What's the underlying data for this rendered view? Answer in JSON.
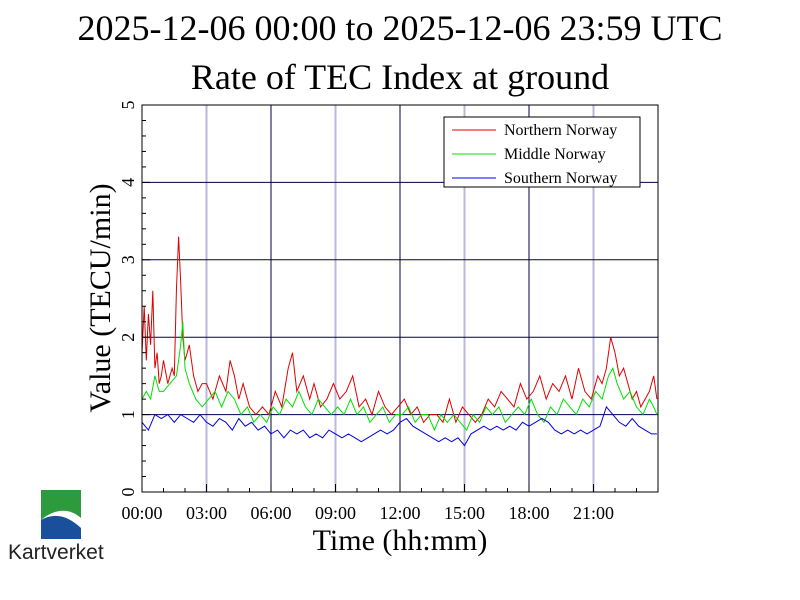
{
  "chart_data": {
    "type": "line",
    "title": "2025-12-06 00:00 to 2025-12-06 23:59 UTC",
    "subtitle": "Rate of TEC Index at ground",
    "xlabel": "Time (hh:mm)",
    "ylabel": "Value (TECU/min)",
    "xlim": [
      0,
      24
    ],
    "ylim": [
      0,
      5
    ],
    "x_ticks": [
      {
        "value": 0,
        "label": "00:00"
      },
      {
        "value": 3,
        "label": "03:00"
      },
      {
        "value": 6,
        "label": "06:00"
      },
      {
        "value": 9,
        "label": "09:00"
      },
      {
        "value": 12,
        "label": "12:00"
      },
      {
        "value": 15,
        "label": "15:00"
      },
      {
        "value": 18,
        "label": "18:00"
      },
      {
        "value": 21,
        "label": "21:00"
      }
    ],
    "y_ticks": [
      {
        "value": 0,
        "label": "0"
      },
      {
        "value": 1,
        "label": "1"
      },
      {
        "value": 2,
        "label": "2"
      },
      {
        "value": 3,
        "label": "3"
      },
      {
        "value": 4,
        "label": "4"
      },
      {
        "value": 5,
        "label": "5"
      }
    ],
    "grid": true,
    "legend_position": "top-right",
    "series": [
      {
        "name": "Northern Norway",
        "color": "#e00000",
        "x": [
          0,
          0.1,
          0.2,
          0.3,
          0.4,
          0.5,
          0.6,
          0.7,
          0.8,
          0.9,
          1.0,
          1.2,
          1.4,
          1.5,
          1.6,
          1.7,
          1.8,
          1.9,
          2.0,
          2.1,
          2.2,
          2.4,
          2.6,
          2.8,
          3.0,
          3.3,
          3.6,
          3.9,
          4.1,
          4.3,
          4.5,
          4.7,
          5.0,
          5.3,
          5.6,
          5.9,
          6.2,
          6.5,
          6.8,
          7.0,
          7.2,
          7.5,
          7.8,
          8.0,
          8.3,
          8.6,
          8.9,
          9.2,
          9.5,
          9.8,
          10.1,
          10.4,
          10.7,
          11.0,
          11.3,
          11.6,
          11.9,
          12.2,
          12.5,
          12.8,
          13.1,
          13.4,
          13.7,
          14.0,
          14.3,
          14.6,
          14.9,
          15.2,
          15.5,
          15.8,
          16.1,
          16.4,
          16.7,
          17.0,
          17.3,
          17.6,
          17.9,
          18.2,
          18.5,
          18.8,
          19.1,
          19.4,
          19.7,
          20.0,
          20.3,
          20.6,
          20.9,
          21.2,
          21.4,
          21.6,
          21.8,
          22.0,
          22.2,
          22.4,
          22.6,
          22.8,
          23.0,
          23.2,
          23.4,
          23.6,
          23.8,
          23.95
        ],
        "values": [
          1.8,
          2.4,
          1.7,
          2.3,
          1.9,
          2.6,
          1.6,
          1.8,
          1.4,
          1.5,
          1.7,
          1.4,
          1.6,
          1.5,
          2.6,
          3.3,
          2.7,
          2.0,
          1.7,
          1.8,
          1.9,
          1.5,
          1.3,
          1.4,
          1.4,
          1.2,
          1.5,
          1.3,
          1.7,
          1.5,
          1.2,
          1.4,
          1.1,
          1.0,
          1.1,
          1.0,
          1.3,
          1.1,
          1.6,
          1.8,
          1.3,
          1.5,
          1.2,
          1.4,
          1.1,
          1.2,
          1.4,
          1.2,
          1.3,
          1.5,
          1.1,
          1.2,
          1.0,
          1.3,
          1.1,
          1.0,
          1.1,
          1.2,
          1.0,
          1.1,
          0.9,
          1.0,
          1.0,
          0.9,
          1.2,
          0.9,
          1.1,
          1.0,
          0.9,
          1.0,
          1.2,
          1.1,
          1.3,
          1.2,
          1.1,
          1.4,
          1.2,
          1.3,
          1.5,
          1.2,
          1.4,
          1.3,
          1.5,
          1.2,
          1.6,
          1.3,
          1.2,
          1.5,
          1.4,
          1.6,
          2.0,
          1.8,
          1.5,
          1.6,
          1.4,
          1.2,
          1.3,
          1.1,
          1.2,
          1.3,
          1.5,
          1.2
        ]
      },
      {
        "name": "Middle Norway",
        "color": "#00e000",
        "x": [
          0,
          0.2,
          0.4,
          0.6,
          0.8,
          1.0,
          1.3,
          1.6,
          1.8,
          1.9,
          2.0,
          2.2,
          2.5,
          2.8,
          3.1,
          3.4,
          3.7,
          4.0,
          4.3,
          4.6,
          4.9,
          5.2,
          5.5,
          5.8,
          6.1,
          6.4,
          6.7,
          7.0,
          7.3,
          7.6,
          7.9,
          8.2,
          8.5,
          8.8,
          9.1,
          9.4,
          9.7,
          10.0,
          10.3,
          10.6,
          10.9,
          11.2,
          11.5,
          11.8,
          12.1,
          12.4,
          12.7,
          13.0,
          13.3,
          13.6,
          13.9,
          14.2,
          14.5,
          14.8,
          15.1,
          15.4,
          15.7,
          16.0,
          16.3,
          16.6,
          16.9,
          17.2,
          17.5,
          17.8,
          18.1,
          18.4,
          18.7,
          19.0,
          19.3,
          19.6,
          19.9,
          20.2,
          20.5,
          20.8,
          21.1,
          21.4,
          21.7,
          21.9,
          22.1,
          22.4,
          22.7,
          23.0,
          23.3,
          23.6,
          23.8,
          23.95
        ],
        "values": [
          1.2,
          1.3,
          1.2,
          1.5,
          1.3,
          1.3,
          1.4,
          1.5,
          1.9,
          2.2,
          1.6,
          1.4,
          1.2,
          1.1,
          1.2,
          1.3,
          1.1,
          1.3,
          1.2,
          1.0,
          1.1,
          0.9,
          1.0,
          0.9,
          1.1,
          1.0,
          1.2,
          1.1,
          1.3,
          1.1,
          1.0,
          1.2,
          1.1,
          1.0,
          1.1,
          1.0,
          1.2,
          1.0,
          1.1,
          0.9,
          1.0,
          1.1,
          0.9,
          1.0,
          1.0,
          1.1,
          0.9,
          1.0,
          1.0,
          0.8,
          1.0,
          0.9,
          1.0,
          0.9,
          0.8,
          1.0,
          0.9,
          1.1,
          1.0,
          1.1,
          0.9,
          1.0,
          1.1,
          1.0,
          1.2,
          1.0,
          0.9,
          1.1,
          1.0,
          1.2,
          1.1,
          1.0,
          1.2,
          1.1,
          1.3,
          1.2,
          1.5,
          1.6,
          1.4,
          1.2,
          1.3,
          1.1,
          1.0,
          1.2,
          1.1,
          1.0
        ]
      },
      {
        "name": "Southern Norway",
        "color": "#0000e0",
        "x": [
          0,
          0.3,
          0.6,
          0.9,
          1.2,
          1.5,
          1.8,
          2.1,
          2.4,
          2.7,
          3.0,
          3.3,
          3.6,
          3.9,
          4.2,
          4.5,
          4.8,
          5.1,
          5.4,
          5.7,
          6.0,
          6.3,
          6.6,
          6.9,
          7.2,
          7.5,
          7.8,
          8.1,
          8.4,
          8.7,
          9.0,
          9.3,
          9.6,
          9.9,
          10.2,
          10.5,
          10.8,
          11.1,
          11.4,
          11.7,
          12.0,
          12.3,
          12.6,
          12.9,
          13.2,
          13.5,
          13.8,
          14.1,
          14.4,
          14.7,
          15.0,
          15.3,
          15.6,
          15.9,
          16.2,
          16.5,
          16.8,
          17.1,
          17.4,
          17.7,
          18.0,
          18.3,
          18.6,
          18.9,
          19.2,
          19.5,
          19.8,
          20.1,
          20.4,
          20.7,
          21.0,
          21.3,
          21.6,
          21.9,
          22.2,
          22.5,
          22.8,
          23.1,
          23.4,
          23.7,
          23.95
        ],
        "values": [
          0.9,
          0.8,
          1.0,
          0.95,
          1.0,
          0.9,
          1.0,
          0.95,
          0.9,
          1.0,
          0.9,
          0.85,
          0.95,
          0.9,
          0.8,
          0.95,
          0.85,
          0.9,
          0.8,
          0.85,
          0.75,
          0.8,
          0.7,
          0.8,
          0.75,
          0.8,
          0.7,
          0.75,
          0.7,
          0.8,
          0.75,
          0.7,
          0.75,
          0.7,
          0.65,
          0.7,
          0.75,
          0.8,
          0.75,
          0.8,
          0.9,
          0.95,
          0.85,
          0.8,
          0.75,
          0.7,
          0.65,
          0.7,
          0.65,
          0.7,
          0.6,
          0.75,
          0.8,
          0.85,
          0.8,
          0.85,
          0.8,
          0.85,
          0.8,
          0.9,
          0.85,
          0.9,
          0.95,
          0.9,
          0.8,
          0.75,
          0.8,
          0.75,
          0.8,
          0.75,
          0.8,
          0.85,
          1.1,
          1.0,
          0.9,
          0.85,
          0.95,
          0.85,
          0.8,
          0.75,
          0.75
        ]
      }
    ]
  },
  "logo": {
    "text": "Kartverket",
    "colors": {
      "green": "#2e9a3e",
      "blue": "#1a4f9c"
    }
  }
}
